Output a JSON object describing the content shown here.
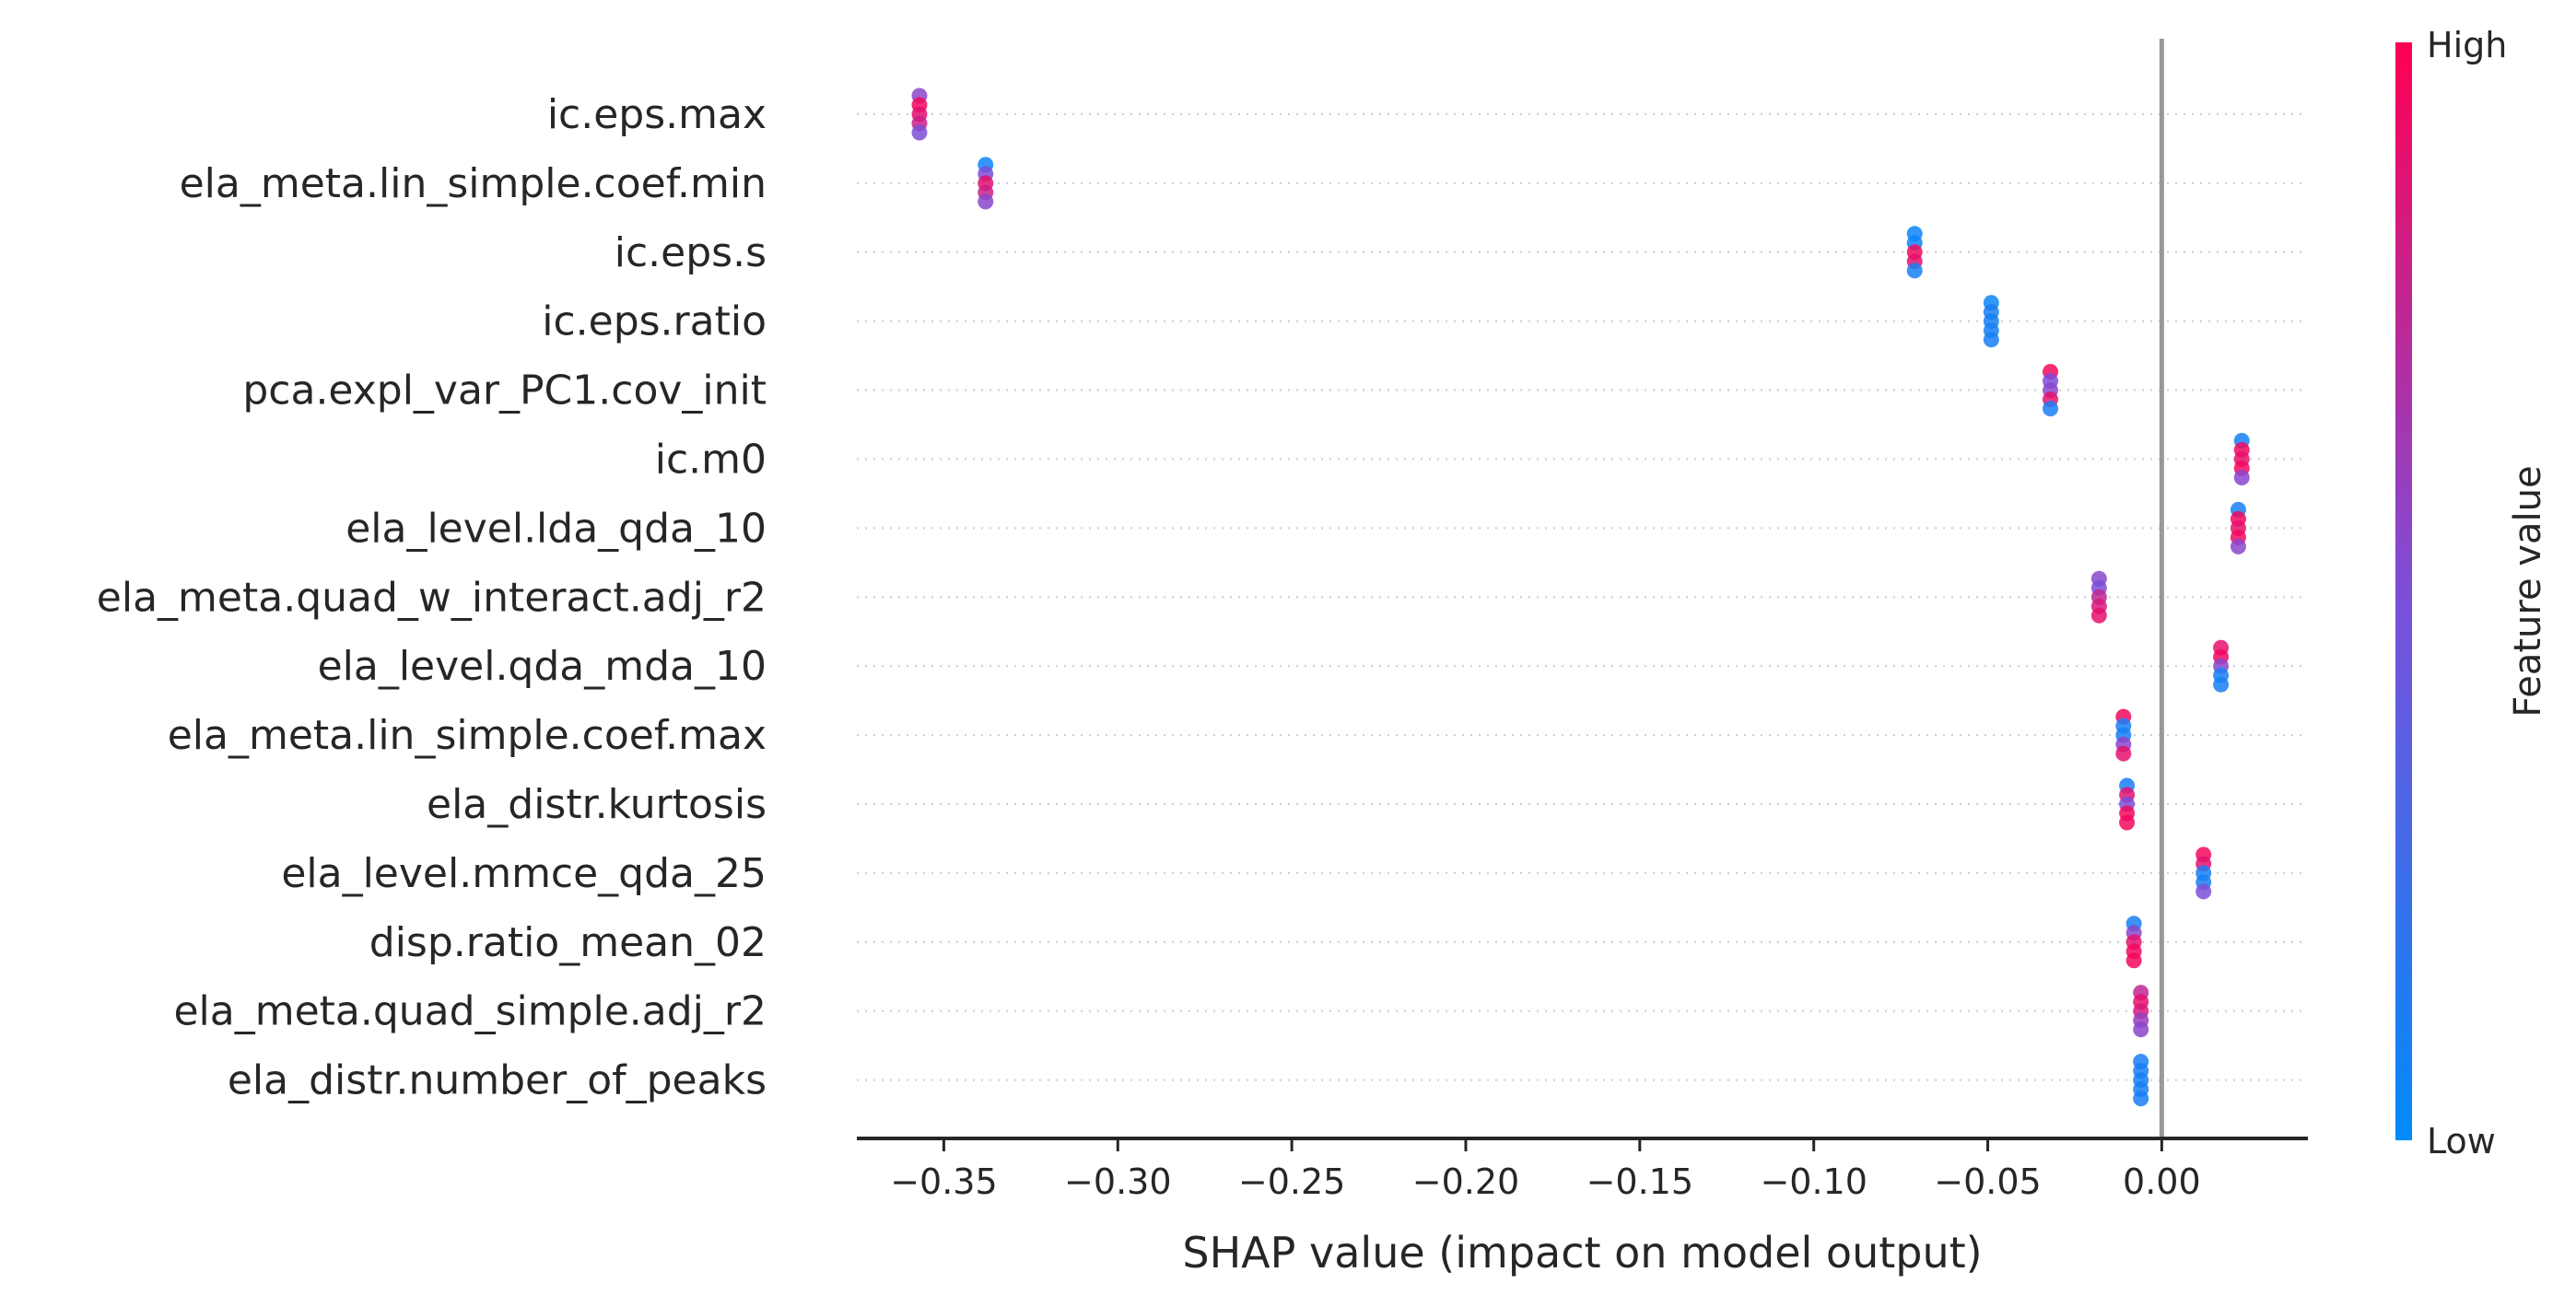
{
  "chart_data": {
    "type": "scatter",
    "subtype": "shap-beeswarm",
    "title": "",
    "xlabel": "SHAP value (impact on model output)",
    "ylabel": "",
    "xlim": [
      -0.375,
      0.042
    ],
    "xticks": [
      -0.35,
      -0.3,
      -0.25,
      -0.2,
      -0.15,
      -0.1,
      -0.05,
      0.0
    ],
    "xtick_labels": [
      "−0.35",
      "−0.30",
      "−0.25",
      "−0.20",
      "−0.15",
      "−0.10",
      "−0.05",
      "0.00"
    ],
    "zero_line": 0.0,
    "grid": "dotted horizontal row guides",
    "colorbar": {
      "title": "Feature value",
      "high_label": "High",
      "low_label": "Low",
      "colors": {
        "low": "#008bfb",
        "mid": "#7d4ed8",
        "high": "#ff0052"
      }
    },
    "features": [
      {
        "name": "ic.eps.max",
        "shap": [
          -0.357,
          -0.357,
          -0.357,
          -0.357,
          -0.357
        ],
        "value": [
          0.55,
          0.95,
          0.9,
          0.8,
          0.5
        ]
      },
      {
        "name": "ela_meta.lin_simple.coef.min",
        "shap": [
          -0.338,
          -0.338,
          -0.338,
          -0.338,
          -0.338
        ],
        "value": [
          0.05,
          0.5,
          0.9,
          0.8,
          0.55
        ]
      },
      {
        "name": "ic.eps.s",
        "shap": [
          -0.071,
          -0.071,
          -0.071,
          -0.071,
          -0.071
        ],
        "value": [
          0.05,
          0.05,
          0.95,
          0.9,
          0.1
        ]
      },
      {
        "name": "ic.eps.ratio",
        "shap": [
          -0.049,
          -0.049,
          -0.049,
          -0.049,
          -0.049
        ],
        "value": [
          0.05,
          0.1,
          0.1,
          0.1,
          0.1
        ]
      },
      {
        "name": "pca.expl_var_PC1.cov_init",
        "shap": [
          -0.032,
          -0.032,
          -0.032,
          -0.032,
          -0.032
        ],
        "value": [
          0.95,
          0.5,
          0.55,
          0.9,
          0.1
        ]
      },
      {
        "name": "ic.m0",
        "shap": [
          0.023,
          0.023,
          0.023,
          0.023,
          0.023
        ],
        "value": [
          0.1,
          0.95,
          0.9,
          0.95,
          0.55
        ]
      },
      {
        "name": "ela_level.lda_qda_10",
        "shap": [
          0.022,
          0.022,
          0.022,
          0.022,
          0.022
        ],
        "value": [
          0.1,
          0.95,
          0.9,
          0.95,
          0.55
        ]
      },
      {
        "name": "ela_meta.quad_w_interact.adj_r2",
        "shap": [
          -0.018,
          -0.018,
          -0.018,
          -0.018,
          -0.018
        ],
        "value": [
          0.55,
          0.5,
          0.75,
          0.85,
          0.9
        ]
      },
      {
        "name": "ela_level.qda_mda_10",
        "shap": [
          0.017,
          0.017,
          0.017,
          0.017,
          0.017
        ],
        "value": [
          0.9,
          0.95,
          0.55,
          0.1,
          0.1
        ]
      },
      {
        "name": "ela_meta.lin_simple.coef.max",
        "shap": [
          -0.011,
          -0.011,
          -0.011,
          -0.011,
          -0.011
        ],
        "value": [
          0.95,
          0.1,
          0.1,
          0.55,
          0.9
        ]
      },
      {
        "name": "ela_distr.kurtosis",
        "shap": [
          -0.01,
          -0.01,
          -0.01,
          -0.01,
          -0.01
        ],
        "value": [
          0.1,
          0.9,
          0.5,
          0.95,
          0.95
        ]
      },
      {
        "name": "ela_level.mmce_qda_25",
        "shap": [
          0.012,
          0.012,
          0.012,
          0.012,
          0.012
        ],
        "value": [
          0.95,
          0.9,
          0.1,
          0.1,
          0.5
        ]
      },
      {
        "name": "disp.ratio_mean_02",
        "shap": [
          -0.008,
          -0.008,
          -0.008,
          -0.008,
          -0.008
        ],
        "value": [
          0.1,
          0.55,
          0.9,
          0.95,
          0.95
        ]
      },
      {
        "name": "ela_meta.quad_simple.adj_r2",
        "shap": [
          -0.006,
          -0.006,
          -0.006,
          -0.006,
          -0.006
        ],
        "value": [
          0.75,
          0.9,
          0.85,
          0.6,
          0.55
        ]
      },
      {
        "name": "ela_distr.number_of_peaks",
        "shap": [
          -0.006,
          -0.006,
          -0.006,
          -0.006,
          -0.006
        ],
        "value": [
          0.1,
          0.1,
          0.1,
          0.1,
          0.1
        ]
      }
    ]
  }
}
